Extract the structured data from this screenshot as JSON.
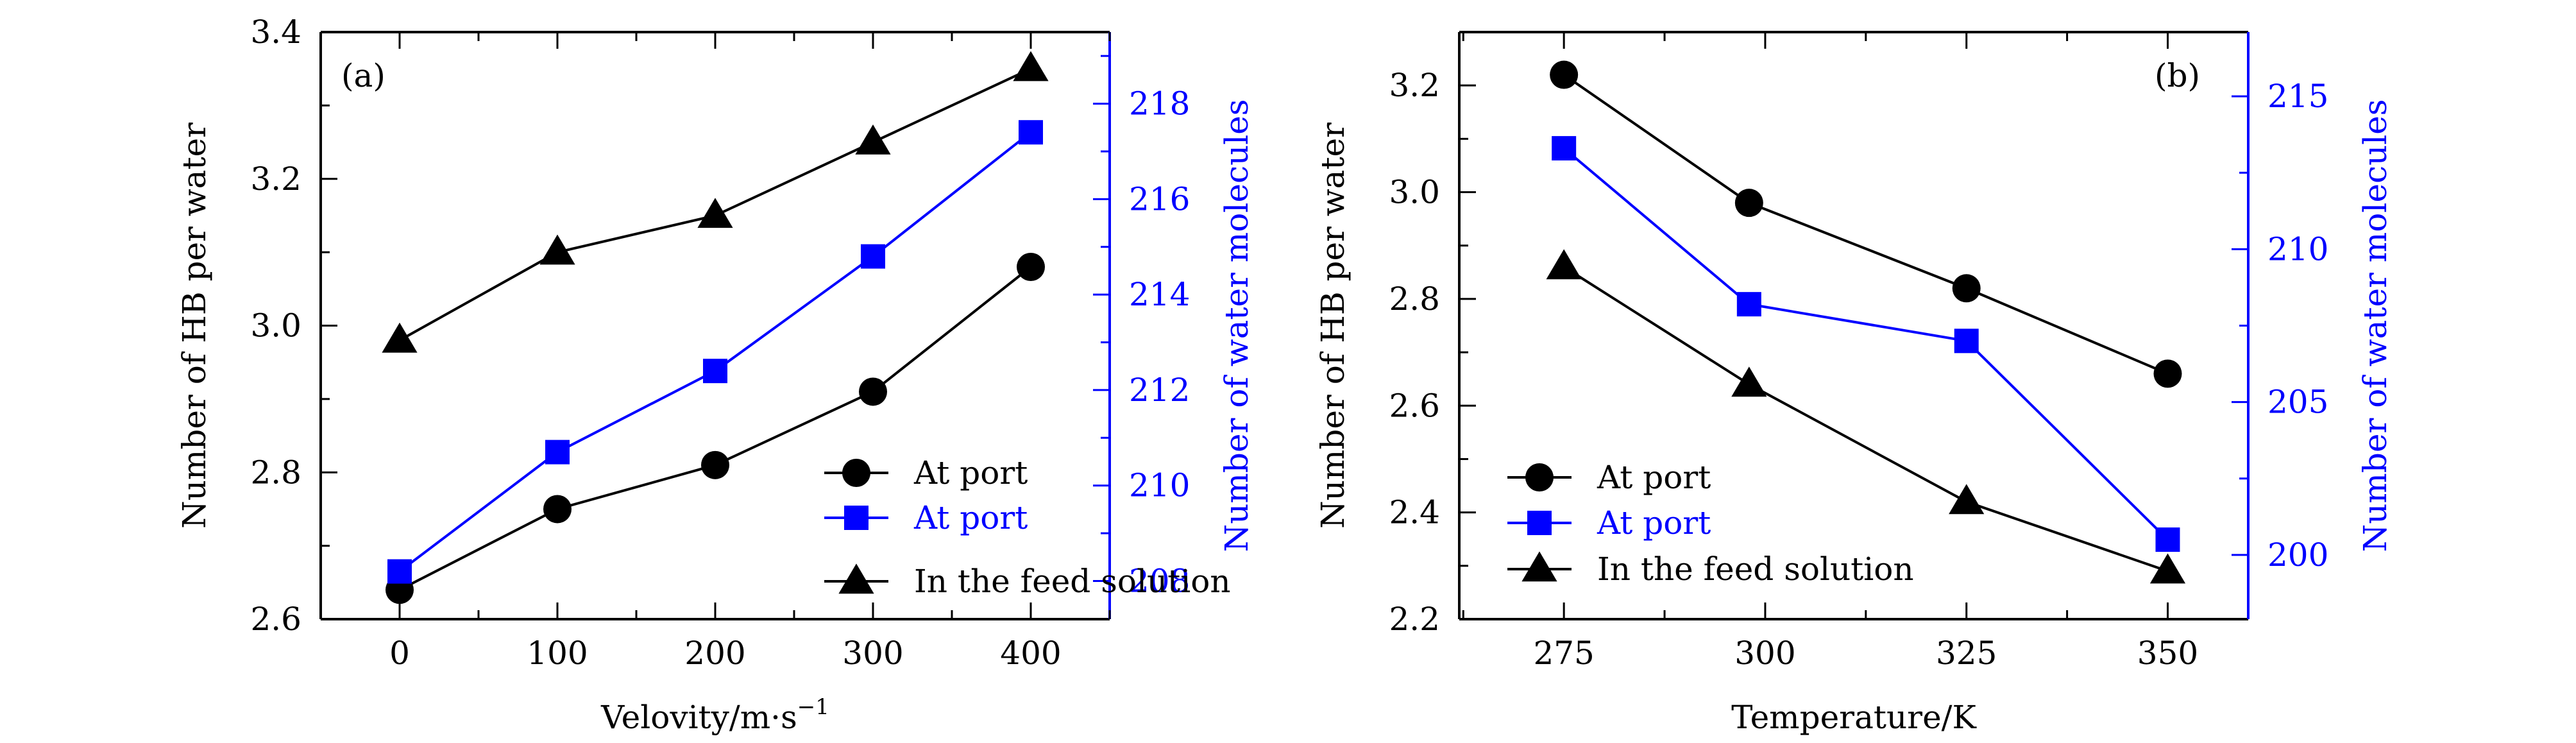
{
  "colors": {
    "black": "#000000",
    "blue": "#0000ff"
  },
  "chart_data": [
    {
      "panel_label": "(a)",
      "type": "line",
      "xlabel": "Velovity/m·s",
      "xlabel_sup": "−1",
      "ylabel": "Number of HB per water",
      "ylabel_right": "Number of water molecules",
      "xlim": [
        -50,
        450
      ],
      "ylim": [
        2.6,
        3.4
      ],
      "ylim_right": [
        207.2,
        219.5
      ],
      "xticks": [
        "0",
        "100",
        "200",
        "300",
        "400"
      ],
      "yticks": [
        "2.6",
        "2.8",
        "3.0",
        "3.2",
        "3.4"
      ],
      "yticks_right": [
        "208",
        "210",
        "212",
        "214",
        "216",
        "218"
      ],
      "x": [
        0,
        100,
        200,
        300,
        400
      ],
      "series": [
        {
          "name": "At port",
          "marker": "circle",
          "axis": "left",
          "color": "#000000",
          "values": [
            2.64,
            2.75,
            2.81,
            2.91,
            3.08
          ]
        },
        {
          "name": "At port",
          "marker": "square",
          "axis": "right",
          "color": "#0000ff",
          "values": [
            208.2,
            210.7,
            212.4,
            214.8,
            217.4
          ]
        },
        {
          "name": "In the feed solution",
          "marker": "triangle",
          "axis": "left",
          "color": "#000000",
          "values": [
            2.98,
            3.1,
            3.15,
            3.25,
            3.35
          ]
        }
      ],
      "legend": "bottom-right"
    },
    {
      "panel_label": "(b)",
      "type": "line",
      "xlabel": "Temperature/K",
      "ylabel": "Number of HB per water",
      "ylabel_right": "Number of water molecules",
      "xlim": [
        262,
        360
      ],
      "ylim": [
        2.2,
        3.3
      ],
      "ylim_right": [
        197.9,
        217.1
      ],
      "xticks": [
        "275",
        "300",
        "325",
        "350"
      ],
      "yticks": [
        "2.2",
        "2.4",
        "2.6",
        "2.8",
        "3.0",
        "3.2"
      ],
      "yticks_right": [
        "200",
        "205",
        "210",
        "215"
      ],
      "x": [
        275,
        298,
        325,
        350
      ],
      "series": [
        {
          "name": "At port",
          "marker": "circle",
          "axis": "left",
          "color": "#000000",
          "values": [
            3.22,
            2.98,
            2.82,
            2.66
          ]
        },
        {
          "name": "At port",
          "marker": "square",
          "axis": "right",
          "color": "#0000ff",
          "values": [
            213.3,
            208.2,
            207.0,
            200.5
          ]
        },
        {
          "name": "In the feed solution",
          "marker": "triangle",
          "axis": "left",
          "color": "#000000",
          "values": [
            2.86,
            2.64,
            2.42,
            2.29
          ]
        }
      ],
      "legend": "bottom-left"
    }
  ]
}
